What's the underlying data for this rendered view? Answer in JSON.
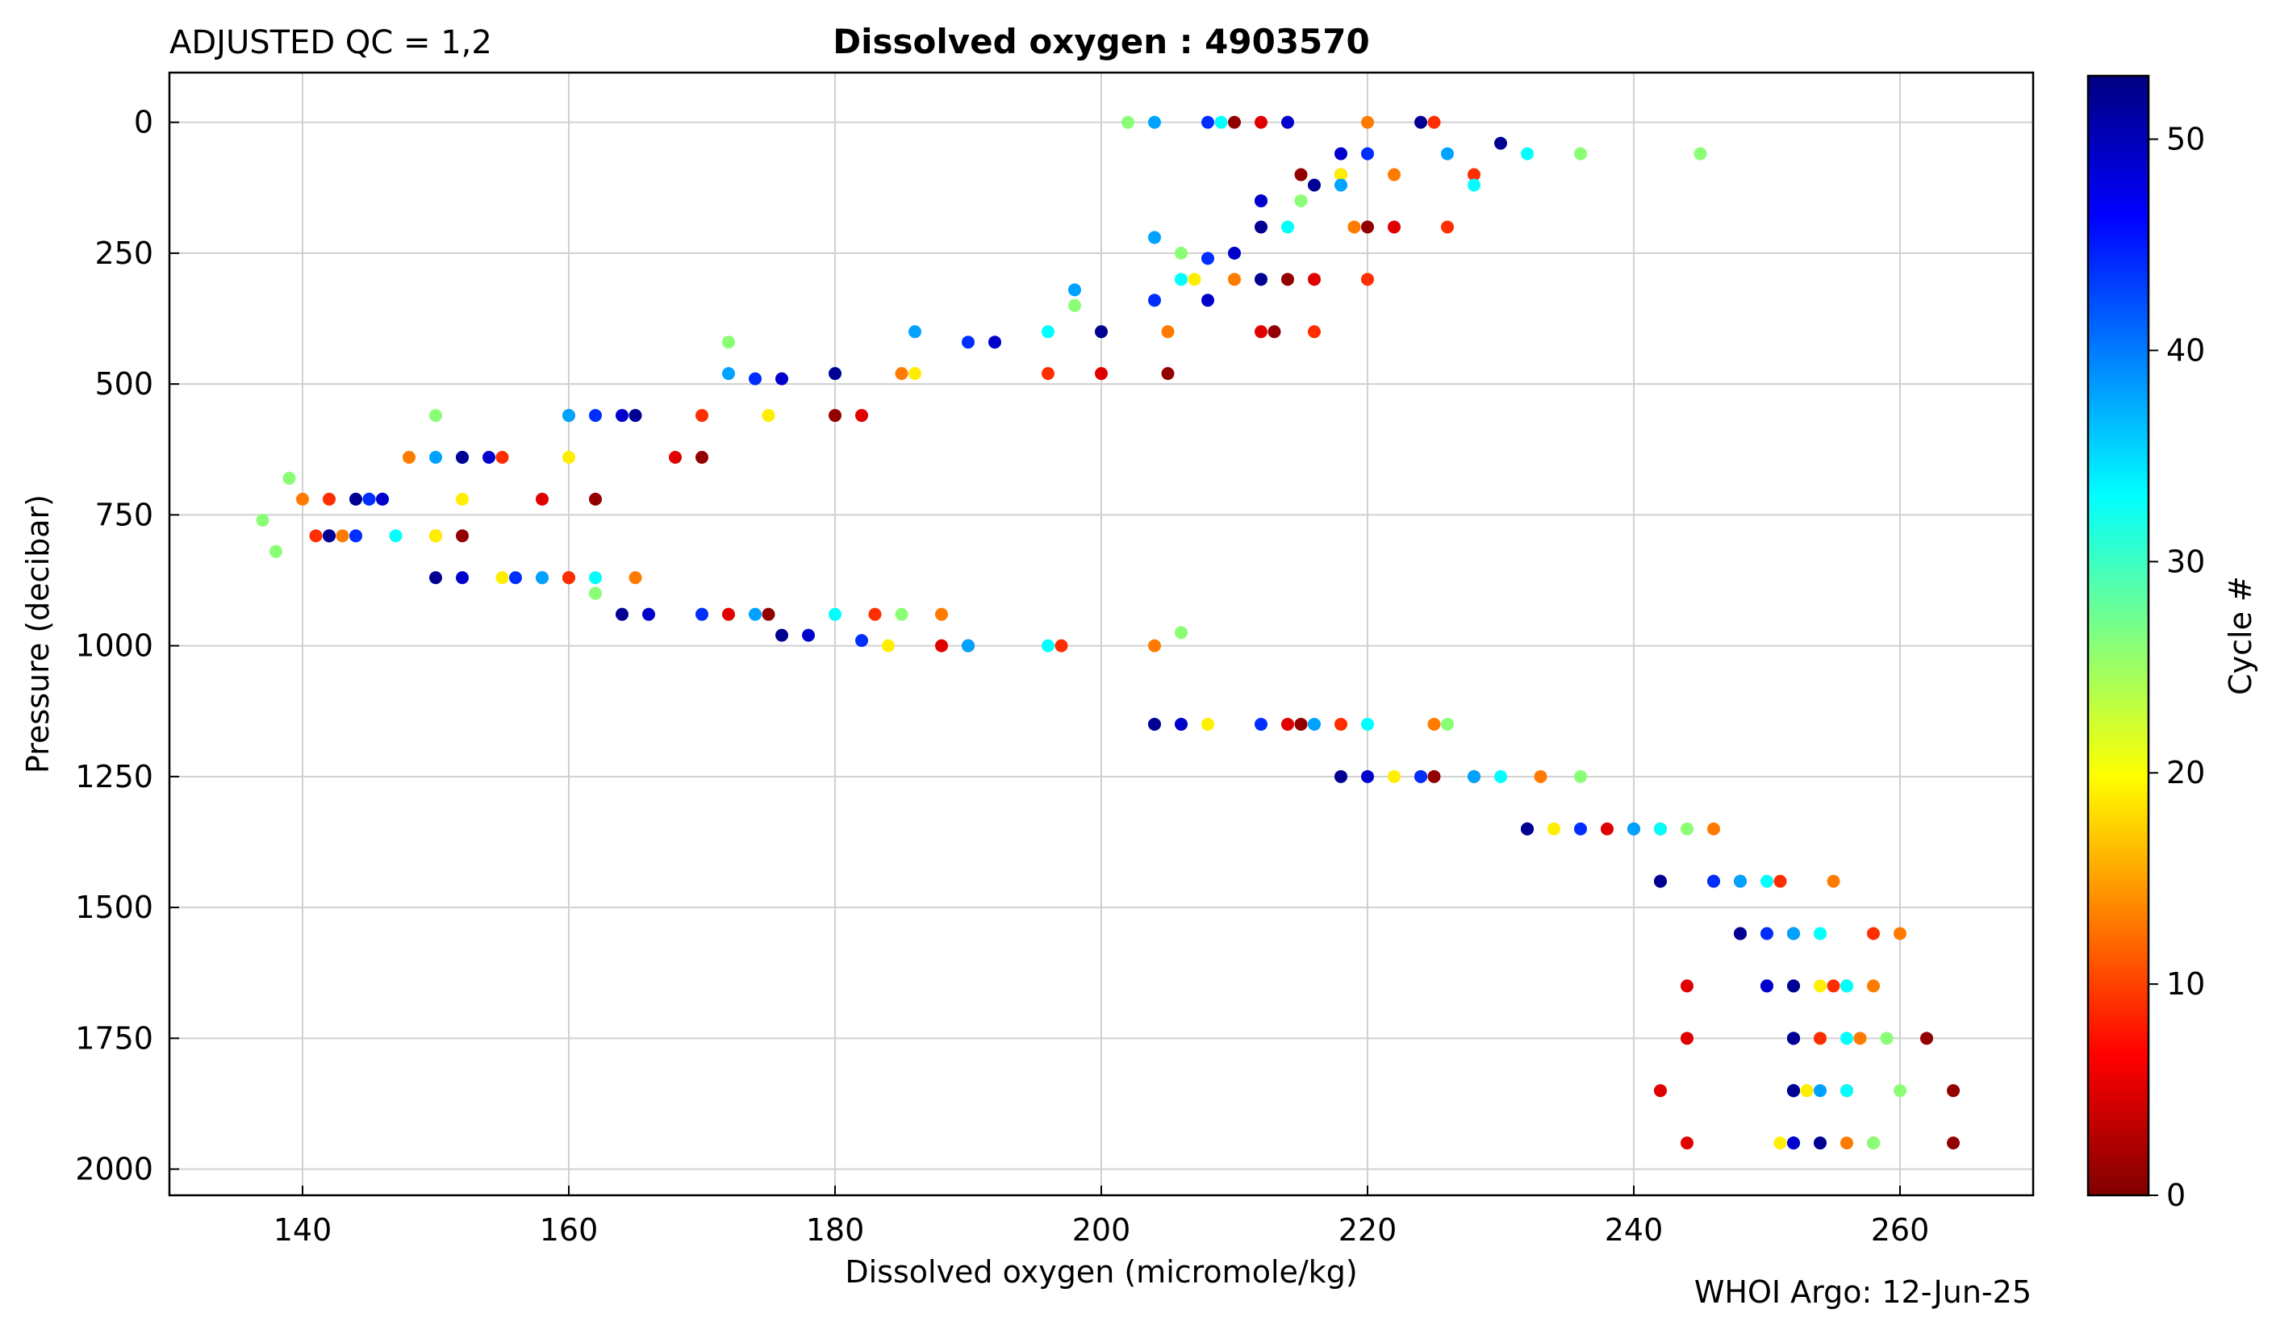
{
  "header": {
    "qc_label": "ADJUSTED QC = 1,2",
    "title": "Dissolved oxygen : 4903570"
  },
  "footer": {
    "credit": "WHOI Argo: 12-Jun-25"
  },
  "chart_data": {
    "type": "scatter",
    "title": "Dissolved oxygen : 4903570",
    "xlabel": "Dissolved oxygen  (micromole/kg)",
    "ylabel": "Pressure  (decibar)",
    "xlim": [
      130,
      270
    ],
    "ylim": [
      2050,
      -95
    ],
    "y_inverted": true,
    "grid": true,
    "x_ticks": [
      140,
      160,
      180,
      200,
      220,
      240,
      260
    ],
    "y_ticks": [
      0,
      250,
      500,
      750,
      1000,
      1250,
      1500,
      1750,
      2000
    ],
    "colorbar": {
      "label": "Cycle #",
      "colormap": "jet",
      "range": [
        0,
        53
      ],
      "ticks": [
        0,
        10,
        20,
        30,
        40,
        50
      ],
      "colors": [
        "#800000",
        "#ff0000",
        "#ff8000",
        "#ffff00",
        "#80ff80",
        "#00ffff",
        "#0080ff",
        "#0000ff",
        "#000080"
      ]
    },
    "series": [
      {
        "cycle": 1,
        "points": [
          [
            210,
            0
          ],
          [
            215,
            100
          ],
          [
            220,
            200
          ],
          [
            214,
            300
          ],
          [
            213,
            400
          ],
          [
            205,
            480
          ],
          [
            180,
            560
          ],
          [
            170,
            640
          ],
          [
            162,
            720
          ],
          [
            152,
            790
          ],
          [
            160,
            870
          ],
          [
            175,
            940
          ],
          [
            190,
            1000
          ],
          [
            215,
            1150
          ],
          [
            225,
            1250
          ],
          [
            240,
            1350
          ],
          [
            248,
            1450
          ],
          [
            252,
            1550
          ],
          [
            256,
            1650
          ],
          [
            262,
            1750
          ],
          [
            264,
            1850
          ],
          [
            264,
            1950
          ]
        ]
      },
      {
        "cycle": 5,
        "points": [
          [
            212,
            0
          ],
          [
            218,
            100
          ],
          [
            222,
            200
          ],
          [
            216,
            300
          ],
          [
            212,
            400
          ],
          [
            200,
            480
          ],
          [
            182,
            560
          ],
          [
            168,
            640
          ],
          [
            158,
            720
          ],
          [
            150,
            790
          ],
          [
            158,
            870
          ],
          [
            172,
            940
          ],
          [
            188,
            1000
          ],
          [
            214,
            1150
          ],
          [
            224,
            1250
          ],
          [
            238,
            1350
          ],
          [
            246,
            1450
          ],
          [
            248,
            1550
          ],
          [
            244,
            1650
          ],
          [
            244,
            1750
          ],
          [
            242,
            1850
          ],
          [
            244,
            1950
          ]
        ]
      },
      {
        "cycle": 9,
        "points": [
          [
            225,
            0
          ],
          [
            228,
            100
          ],
          [
            226,
            200
          ],
          [
            220,
            300
          ],
          [
            216,
            400
          ],
          [
            196,
            480
          ],
          [
            170,
            560
          ],
          [
            155,
            640
          ],
          [
            142,
            720
          ],
          [
            141,
            790
          ],
          [
            160,
            870
          ],
          [
            183,
            940
          ],
          [
            197,
            1000
          ],
          [
            218,
            1150
          ],
          [
            228,
            1250
          ],
          [
            242,
            1350
          ],
          [
            251,
            1450
          ],
          [
            258,
            1550
          ],
          [
            255,
            1650
          ],
          [
            254,
            1750
          ],
          [
            256,
            1850
          ],
          [
            258,
            1950
          ]
        ]
      },
      {
        "cycle": 13,
        "points": [
          [
            220,
            0
          ],
          [
            222,
            100
          ],
          [
            219,
            200
          ],
          [
            210,
            300
          ],
          [
            205,
            400
          ],
          [
            185,
            480
          ],
          [
            160,
            560
          ],
          [
            148,
            640
          ],
          [
            140,
            720
          ],
          [
            143,
            790
          ],
          [
            165,
            870
          ],
          [
            188,
            940
          ],
          [
            204,
            1000
          ],
          [
            225,
            1150
          ],
          [
            233,
            1250
          ],
          [
            246,
            1350
          ],
          [
            255,
            1450
          ],
          [
            260,
            1550
          ],
          [
            258,
            1650
          ],
          [
            257,
            1750
          ],
          [
            256,
            1850
          ],
          [
            256,
            1950
          ]
        ]
      },
      {
        "cycle": 19,
        "points": [
          [
            214,
            0
          ],
          [
            218,
            100
          ],
          [
            214,
            200
          ],
          [
            207,
            300
          ],
          [
            200,
            400
          ],
          [
            186,
            480
          ],
          [
            175,
            560
          ],
          [
            160,
            640
          ],
          [
            152,
            720
          ],
          [
            150,
            790
          ],
          [
            155,
            870
          ],
          [
            170,
            940
          ],
          [
            184,
            1000
          ],
          [
            208,
            1150
          ],
          [
            222,
            1250
          ],
          [
            234,
            1350
          ],
          [
            242,
            1450
          ],
          [
            250,
            1550
          ],
          [
            254,
            1650
          ],
          [
            252,
            1750
          ],
          [
            253,
            1850
          ],
          [
            251,
            1950
          ]
        ]
      },
      {
        "cycle": 26,
        "points": [
          [
            202,
            0
          ],
          [
            236,
            60
          ],
          [
            245,
            60
          ],
          [
            215,
            150
          ],
          [
            206,
            250
          ],
          [
            198,
            350
          ],
          [
            172,
            420
          ],
          [
            150,
            560
          ],
          [
            139,
            680
          ],
          [
            137,
            760
          ],
          [
            138,
            820
          ],
          [
            162,
            900
          ],
          [
            185,
            940
          ],
          [
            206,
            975
          ],
          [
            226,
            1150
          ],
          [
            236,
            1250
          ],
          [
            244,
            1350
          ],
          [
            250,
            1450
          ],
          [
            254,
            1550
          ],
          [
            256,
            1650
          ],
          [
            259,
            1750
          ],
          [
            260,
            1850
          ],
          [
            258,
            1950
          ]
        ]
      },
      {
        "cycle": 33,
        "points": [
          [
            209,
            0
          ],
          [
            232,
            60
          ],
          [
            228,
            120
          ],
          [
            214,
            200
          ],
          [
            206,
            300
          ],
          [
            196,
            400
          ],
          [
            180,
            480
          ],
          [
            165,
            560
          ],
          [
            152,
            640
          ],
          [
            146,
            720
          ],
          [
            147,
            790
          ],
          [
            162,
            870
          ],
          [
            180,
            940
          ],
          [
            196,
            1000
          ],
          [
            220,
            1150
          ],
          [
            230,
            1250
          ],
          [
            242,
            1350
          ],
          [
            250,
            1450
          ],
          [
            254,
            1550
          ],
          [
            256,
            1650
          ],
          [
            256,
            1750
          ],
          [
            256,
            1850
          ],
          [
            252,
            1950
          ]
        ]
      },
      {
        "cycle": 38,
        "points": [
          [
            204,
            0
          ],
          [
            226,
            60
          ],
          [
            218,
            120
          ],
          [
            204,
            220
          ],
          [
            198,
            320
          ],
          [
            186,
            400
          ],
          [
            172,
            480
          ],
          [
            160,
            560
          ],
          [
            150,
            640
          ],
          [
            145,
            720
          ],
          [
            144,
            790
          ],
          [
            158,
            870
          ],
          [
            174,
            940
          ],
          [
            190,
            1000
          ],
          [
            216,
            1150
          ],
          [
            228,
            1250
          ],
          [
            240,
            1350
          ],
          [
            248,
            1450
          ],
          [
            252,
            1550
          ],
          [
            252,
            1650
          ],
          [
            252,
            1750
          ],
          [
            254,
            1850
          ],
          [
            254,
            1950
          ]
        ]
      },
      {
        "cycle": 44,
        "points": [
          [
            208,
            0
          ],
          [
            220,
            60
          ],
          [
            212,
            150
          ],
          [
            208,
            260
          ],
          [
            204,
            340
          ],
          [
            190,
            420
          ],
          [
            174,
            490
          ],
          [
            162,
            560
          ],
          [
            152,
            640
          ],
          [
            145,
            720
          ],
          [
            144,
            790
          ],
          [
            156,
            870
          ],
          [
            170,
            940
          ],
          [
            182,
            990
          ],
          [
            212,
            1150
          ],
          [
            224,
            1250
          ],
          [
            236,
            1350
          ],
          [
            246,
            1450
          ],
          [
            250,
            1550
          ],
          [
            250,
            1650
          ],
          [
            252,
            1750
          ],
          [
            252,
            1850
          ],
          [
            252,
            1950
          ]
        ]
      },
      {
        "cycle": 49,
        "points": [
          [
            214,
            0
          ],
          [
            218,
            60
          ],
          [
            212,
            150
          ],
          [
            210,
            250
          ],
          [
            208,
            340
          ],
          [
            192,
            420
          ],
          [
            176,
            490
          ],
          [
            164,
            560
          ],
          [
            154,
            640
          ],
          [
            146,
            720
          ],
          [
            142,
            790
          ],
          [
            152,
            870
          ],
          [
            166,
            940
          ],
          [
            178,
            980
          ],
          [
            206,
            1150
          ],
          [
            220,
            1250
          ],
          [
            232,
            1350
          ],
          [
            242,
            1450
          ],
          [
            248,
            1550
          ],
          [
            250,
            1650
          ],
          [
            252,
            1750
          ],
          [
            252,
            1850
          ],
          [
            252,
            1950
          ]
        ]
      },
      {
        "cycle": 52,
        "points": [
          [
            224,
            0
          ],
          [
            230,
            40
          ],
          [
            216,
            120
          ],
          [
            212,
            200
          ],
          [
            212,
            300
          ],
          [
            200,
            400
          ],
          [
            180,
            480
          ],
          [
            165,
            560
          ],
          [
            152,
            640
          ],
          [
            144,
            720
          ],
          [
            142,
            790
          ],
          [
            150,
            870
          ],
          [
            164,
            940
          ],
          [
            176,
            980
          ],
          [
            204,
            1150
          ],
          [
            218,
            1250
          ],
          [
            232,
            1350
          ],
          [
            242,
            1450
          ],
          [
            248,
            1550
          ],
          [
            252,
            1650
          ],
          [
            252,
            1750
          ],
          [
            252,
            1850
          ],
          [
            254,
            1950
          ]
        ]
      }
    ]
  }
}
